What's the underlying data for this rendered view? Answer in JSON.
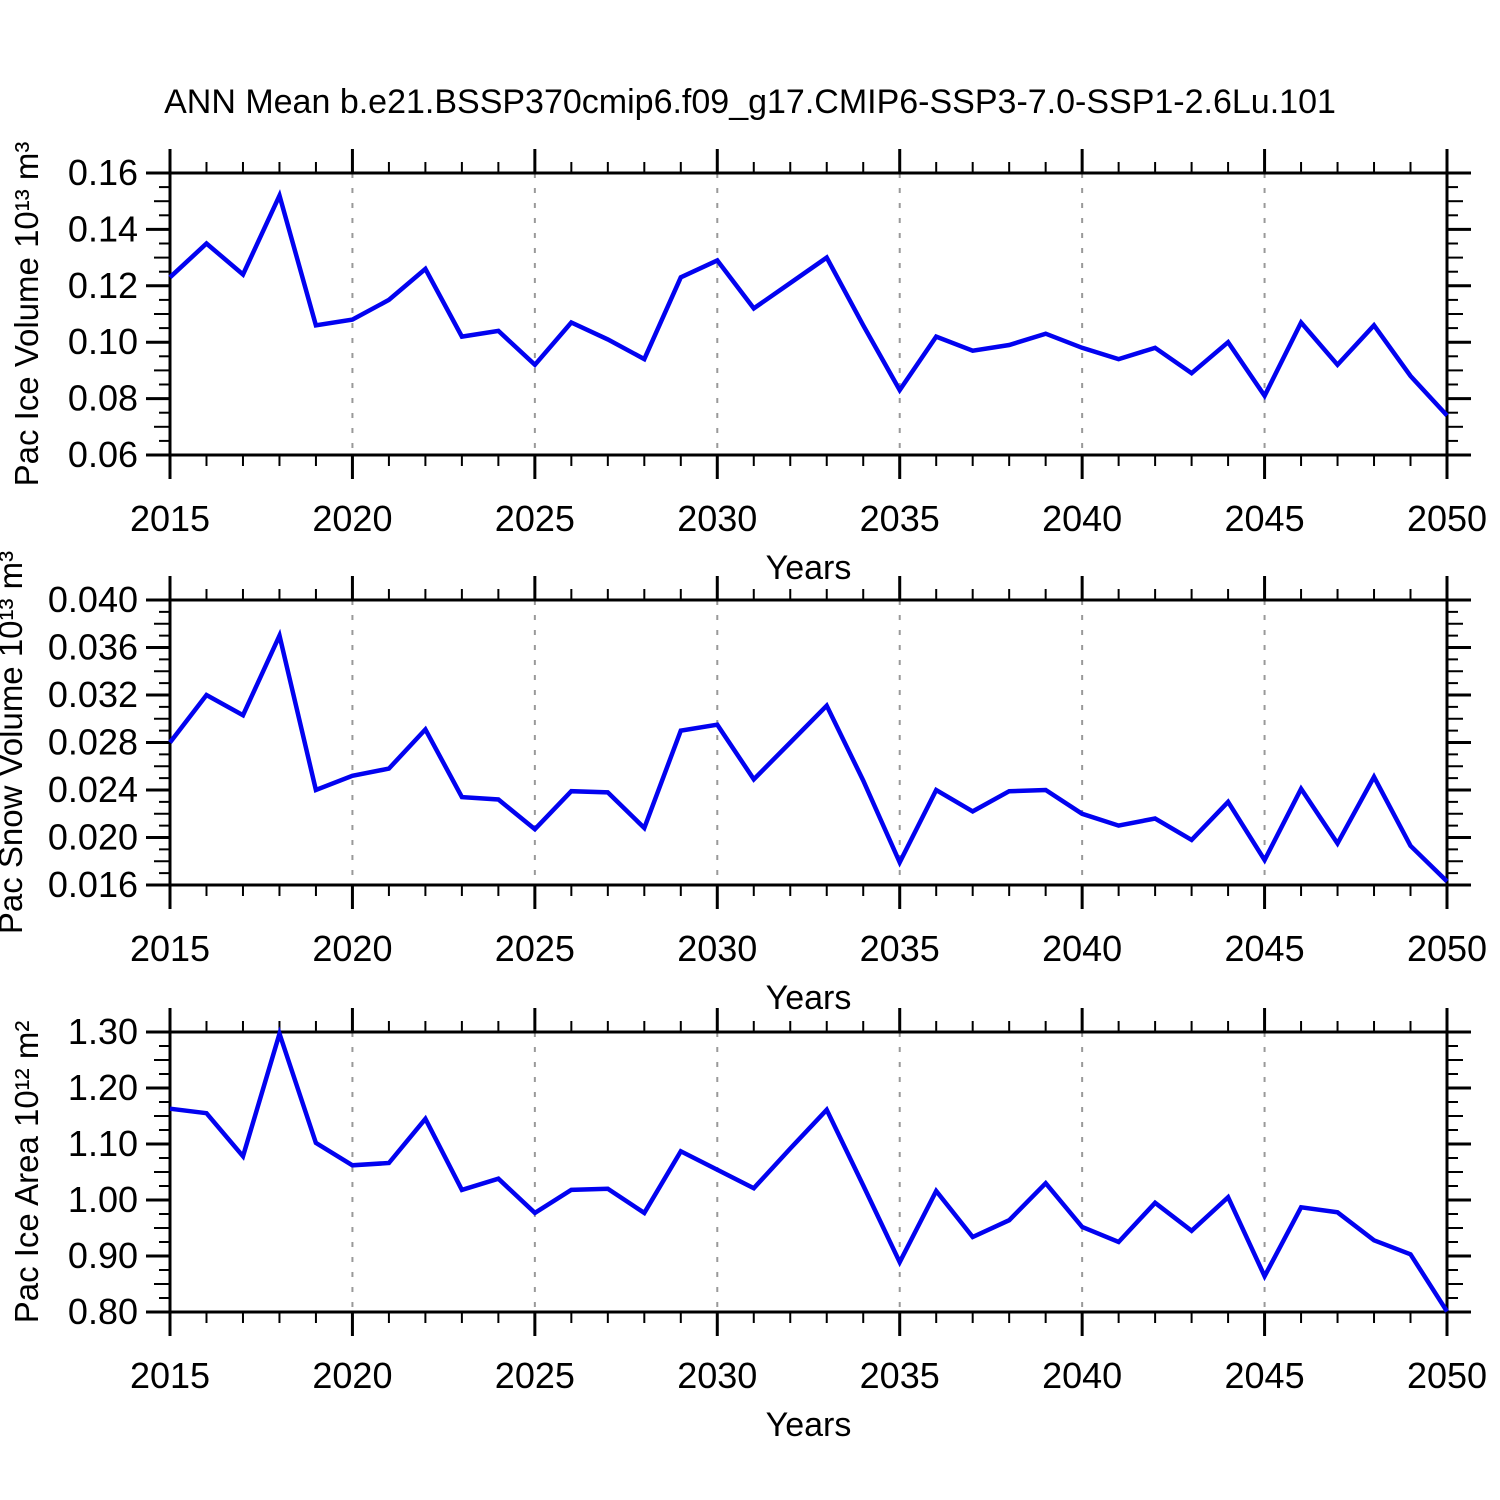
{
  "title": "ANN Mean b.e21.BSSP370cmip6.f09_g17.CMIP6-SSP3-7.0-SSP1-2.6Lu.101",
  "colors": {
    "line": "#0202f0",
    "grid": "#999999",
    "axis": "#000000"
  },
  "x_axis": {
    "label": "Years",
    "range": [
      2015,
      2050
    ],
    "major_ticks": [
      2015,
      2020,
      2025,
      2030,
      2035,
      2040,
      2045,
      2050
    ],
    "tick_labels": [
      "2015",
      "2020",
      "2025",
      "2030",
      "2035",
      "2040",
      "2045",
      "2050"
    ],
    "minor_step": 1,
    "gridline_years": [
      2020,
      2025,
      2030,
      2035,
      2040,
      2045
    ],
    "gridline_style": "dashed"
  },
  "chart_data": [
    {
      "type": "line",
      "name": "pac-ice-volume",
      "ylabel": "Pac Ice Volume 10¹³ m³",
      "xlabel": "Years",
      "ylim": [
        0.06,
        0.16
      ],
      "ytick_values": [
        0.06,
        0.08,
        0.1,
        0.12,
        0.14,
        0.16
      ],
      "ytick_labels": [
        "0.06",
        "0.08",
        "0.10",
        "0.12",
        "0.14",
        "0.16"
      ],
      "y_minor_step": 0.005,
      "x": [
        2015,
        2016,
        2017,
        2018,
        2019,
        2020,
        2021,
        2022,
        2023,
        2024,
        2025,
        2026,
        2027,
        2028,
        2029,
        2030,
        2031,
        2032,
        2033,
        2034,
        2035,
        2036,
        2037,
        2038,
        2039,
        2040,
        2041,
        2042,
        2043,
        2044,
        2045,
        2046,
        2047,
        2048,
        2049,
        2050
      ],
      "values": [
        0.123,
        0.135,
        0.124,
        0.152,
        0.106,
        0.108,
        0.115,
        0.126,
        0.102,
        0.104,
        0.092,
        0.107,
        0.101,
        0.094,
        0.123,
        0.129,
        0.112,
        0.121,
        0.13,
        0.106,
        0.083,
        0.102,
        0.097,
        0.099,
        0.103,
        0.098,
        0.094,
        0.098,
        0.089,
        0.1,
        0.081,
        0.107,
        0.092,
        0.106,
        0.088,
        0.074
      ]
    },
    {
      "type": "line",
      "name": "pac-snow-volume",
      "ylabel": "Pac Snow Volume 10¹³ m³",
      "xlabel": "Years",
      "ylim": [
        0.016,
        0.04
      ],
      "ytick_values": [
        0.016,
        0.02,
        0.024,
        0.028,
        0.032,
        0.036,
        0.04
      ],
      "ytick_labels": [
        "0.016",
        "0.020",
        "0.024",
        "0.028",
        "0.032",
        "0.036",
        "0.040"
      ],
      "y_minor_step": 0.001,
      "x": [
        2015,
        2016,
        2017,
        2018,
        2019,
        2020,
        2021,
        2022,
        2023,
        2024,
        2025,
        2026,
        2027,
        2028,
        2029,
        2030,
        2031,
        2032,
        2033,
        2034,
        2035,
        2036,
        2037,
        2038,
        2039,
        2040,
        2041,
        2042,
        2043,
        2044,
        2045,
        2046,
        2047,
        2048,
        2049,
        2050
      ],
      "values": [
        0.028,
        0.032,
        0.0303,
        0.037,
        0.024,
        0.0252,
        0.0258,
        0.0291,
        0.0234,
        0.0232,
        0.0207,
        0.0239,
        0.0238,
        0.0208,
        0.029,
        0.0295,
        0.0249,
        0.028,
        0.0311,
        0.0248,
        0.0179,
        0.024,
        0.0222,
        0.0239,
        0.024,
        0.022,
        0.021,
        0.0216,
        0.0198,
        0.023,
        0.0181,
        0.0241,
        0.0195,
        0.0251,
        0.0193,
        0.0163
      ]
    },
    {
      "type": "line",
      "name": "pac-ice-area",
      "ylabel": "Pac Ice Area 10¹² m²",
      "xlabel": "Years",
      "ylim": [
        0.8,
        1.3
      ],
      "ytick_values": [
        0.8,
        0.9,
        1.0,
        1.1,
        1.2,
        1.3
      ],
      "ytick_labels": [
        "0.80",
        "0.90",
        "1.00",
        "1.10",
        "1.20",
        "1.30"
      ],
      "y_minor_step": 0.025,
      "x": [
        2015,
        2016,
        2017,
        2018,
        2019,
        2020,
        2021,
        2022,
        2023,
        2024,
        2025,
        2026,
        2027,
        2028,
        2029,
        2030,
        2031,
        2032,
        2033,
        2034,
        2035,
        2036,
        2037,
        2038,
        2039,
        2040,
        2041,
        2042,
        2043,
        2044,
        2045,
        2046,
        2047,
        2048,
        2049,
        2050
      ],
      "values": [
        1.163,
        1.155,
        1.078,
        1.297,
        1.102,
        1.062,
        1.066,
        1.145,
        1.018,
        1.038,
        0.977,
        1.018,
        1.02,
        0.977,
        1.087,
        1.054,
        1.021,
        1.092,
        1.161,
        1.026,
        0.889,
        1.016,
        0.934,
        0.964,
        1.03,
        0.952,
        0.925,
        0.995,
        0.945,
        1.005,
        0.864,
        0.987,
        0.978,
        0.928,
        0.903,
        0.801
      ]
    }
  ]
}
